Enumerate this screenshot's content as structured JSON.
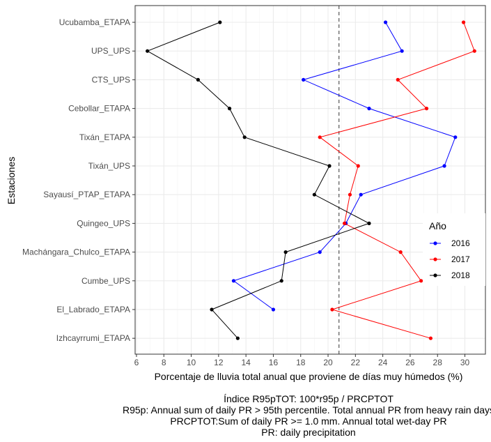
{
  "chart_data": {
    "type": "line",
    "title": "",
    "xlabel": "Porcentaje de lluvia total anual que proviene de días muy húmedos (%)",
    "ylabel": "Estaciones",
    "xlim": [
      5.9,
      31.5
    ],
    "x_ticks": [
      6,
      8,
      10,
      12,
      14,
      16,
      18,
      20,
      22,
      24,
      26,
      28,
      30
    ],
    "categories": [
      "Ucubamba_ETAPA",
      "UPS_UPS",
      "CTS_UPS",
      "Cebollar_ETAPA",
      "Tixán_ETAPA",
      "Tixán_UPS",
      "Sayausí_PTAP_ETAPA",
      "Quingeo_UPS",
      "Machángara_Chulco_ETAPA",
      "Cumbe_UPS",
      "El_Labrado_ETAPA",
      "Izhcayrrumi_ETAPA"
    ],
    "legend_title": "Año",
    "legend_position": "right",
    "grid": true,
    "reference_line": {
      "x": 20.8,
      "style": "dashed"
    },
    "series": [
      {
        "name": "2016",
        "color": "#0000ff",
        "values": [
          24.2,
          25.4,
          18.2,
          23.0,
          29.3,
          28.5,
          22.4,
          21.3,
          19.4,
          13.1,
          16.0,
          null
        ]
      },
      {
        "name": "2017",
        "color": "#ff0000",
        "values": [
          29.9,
          30.7,
          25.1,
          27.2,
          19.4,
          22.2,
          21.6,
          21.2,
          25.3,
          26.8,
          20.3,
          27.5
        ]
      },
      {
        "name": "2018",
        "color": "#000000",
        "values": [
          12.1,
          6.8,
          10.5,
          12.8,
          13.9,
          20.1,
          19.0,
          23.0,
          16.9,
          16.6,
          11.5,
          13.4
        ]
      }
    ]
  },
  "caption": {
    "line1": "Índice R95pTOT: 100*r95p / PRCPTOT",
    "line2": "R95p: Annual sum of daily PR > 95th percentile. Total annual PR from heavy rain days",
    "line3": "PRCPTOT:Sum of daily PR >= 1.0 mm. Annual total wet-day PR",
    "line4": "PR: daily precipitation"
  }
}
